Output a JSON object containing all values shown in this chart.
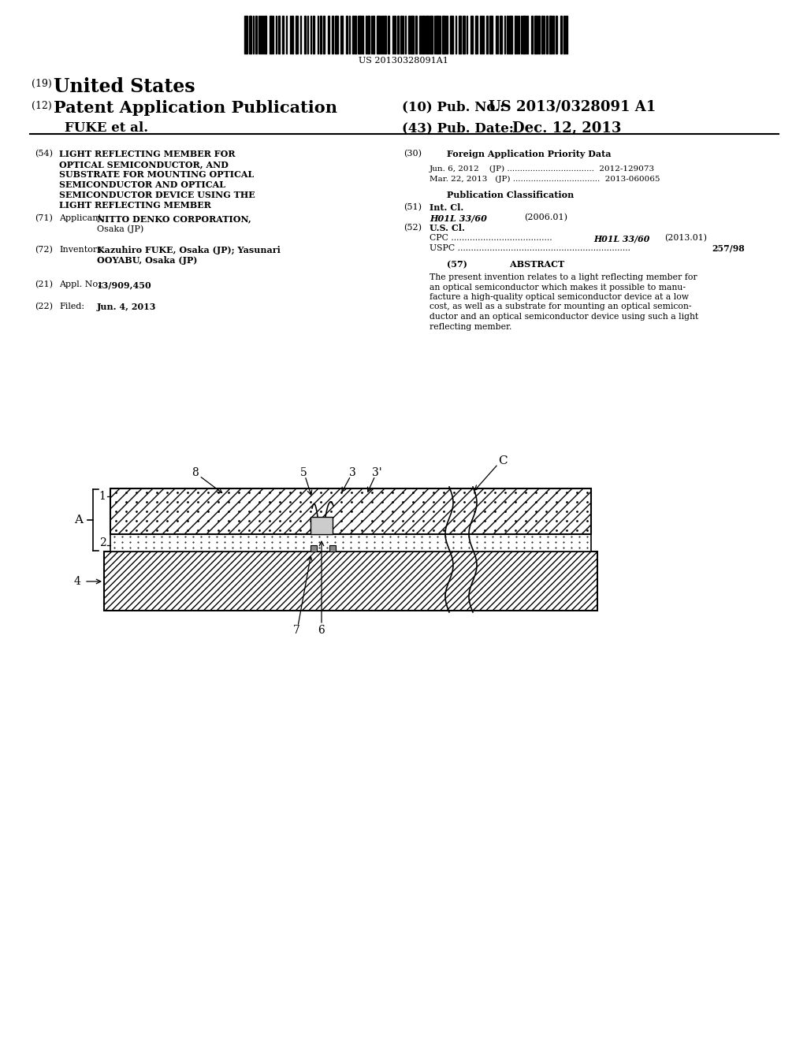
{
  "background_color": "#ffffff",
  "barcode_text": "US 20130328091A1",
  "header": {
    "country_label": "(19)",
    "country": "United States",
    "type_label": "(12)",
    "type": "Patent Application Publication",
    "pub_no_label": "(10) Pub. No.:",
    "pub_no": "US 2013/0328091 A1",
    "authors": "FUKE et al.",
    "date_label": "(43) Pub. Date:",
    "date": "Dec. 12, 2013"
  },
  "left_col": {
    "title_num": "(54)",
    "title_lines": [
      "LIGHT REFLECTING MEMBER FOR",
      "OPTICAL SEMICONDUCTOR, AND",
      "SUBSTRATE FOR MOUNTING OPTICAL",
      "SEMICONDUCTOR AND OPTICAL",
      "SEMICONDUCTOR DEVICE USING THE",
      "LIGHT REFLECTING MEMBER"
    ],
    "applicant_num": "(71)",
    "applicant_label": "Applicant:",
    "applicant_name": "NITTO DENKO CORPORATION,",
    "applicant_city": "Osaka (JP)",
    "inventors_num": "(72)",
    "inventors_label": "Inventors:",
    "inventors_line1": "Kazuhiro FUKE, Osaka (JP); Yasunari",
    "inventors_line2": "OOYABU, Osaka (JP)",
    "appl_num": "(21)",
    "appl_label": "Appl. No.:",
    "appl_no": "13/909,450",
    "filed_num": "(22)",
    "filed_label": "Filed:",
    "filed": "Jun. 4, 2013"
  },
  "right_col": {
    "foreign_num": "(30)",
    "foreign_title": "Foreign Application Priority Data",
    "foreign_date1": "Jun. 6, 2012",
    "foreign_country1": "(JP)",
    "foreign_number1": "2012-129073",
    "foreign_date2": "Mar. 22, 2013",
    "foreign_country2": "(JP)",
    "foreign_number2": "2013-060065",
    "pub_class_title": "Publication Classification",
    "int_cl_num": "(51)",
    "int_cl_label": "Int. Cl.",
    "int_cl_class": "H01L 33/60",
    "int_cl_year": "(2006.01)",
    "us_cl_num": "(52)",
    "us_cl_label": "U.S. Cl.",
    "cpc_class": "H01L 33/60",
    "cpc_year": "(2013.01)",
    "uspc_class": "257/98",
    "abstract_num": "(57)",
    "abstract_title": "ABSTRACT",
    "abstract_lines": [
      "The present invention relates to a light reflecting member for",
      "an optical semiconductor which makes it possible to manu-",
      "facture a high-quality optical semiconductor device at a low",
      "cost, as well as a substrate for mounting an optical semicon-",
      "ductor and an optical semiconductor device using such a light",
      "reflecting member."
    ]
  }
}
